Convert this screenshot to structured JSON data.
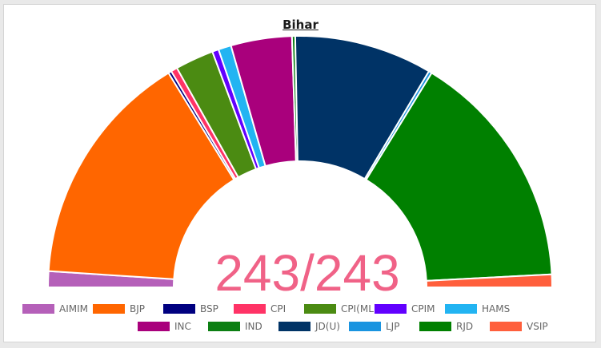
{
  "chart_data": {
    "type": "pie",
    "variant": "parliament-half-donut",
    "title": "Bihar",
    "center_label": "243/243",
    "categories": [
      "AIMIM",
      "BJP",
      "BSP",
      "CPI",
      "CPI(ML)(L)",
      "CPIM",
      "HAMS",
      "INC",
      "IND",
      "JD(U)",
      "LJP",
      "RJD",
      "VSIP"
    ],
    "values": [
      5,
      74,
      1,
      2,
      12,
      2,
      4,
      19,
      1,
      43,
      1,
      75,
      4
    ],
    "colors": [
      "#b560b9",
      "#ff6600",
      "#000080",
      "#ff3366",
      "#4b8b12",
      "#6200ff",
      "#22b4f2",
      "#a9007c",
      "#0c7f13",
      "#003366",
      "#1a94e0",
      "#008000",
      "#ff5f3c"
    ],
    "legend_position": "bottom",
    "center_label_color": "#f06287"
  }
}
